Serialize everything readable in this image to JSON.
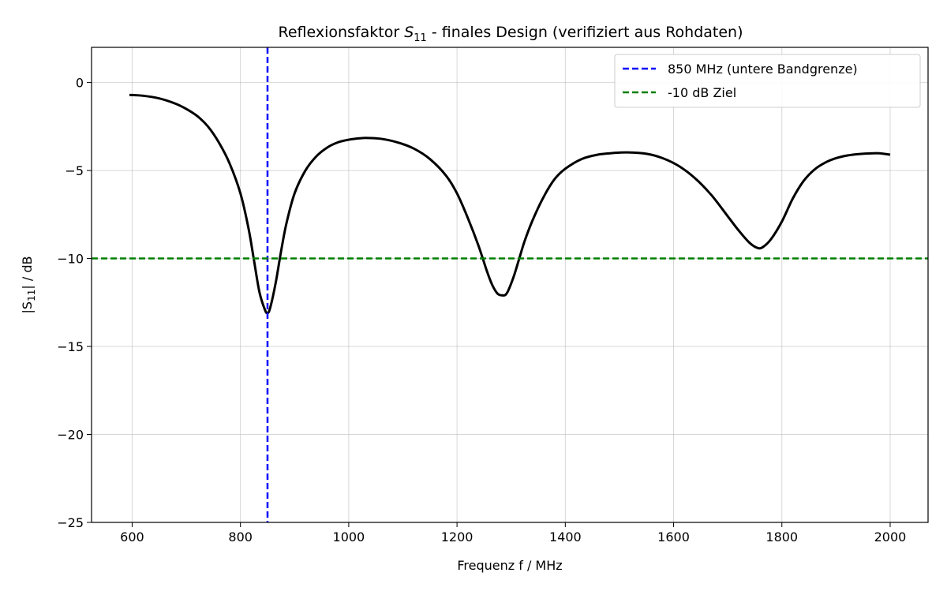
{
  "chart_data": {
    "type": "line",
    "title": {
      "prefix": "Reflexionsfaktor ",
      "symbol": "S",
      "subscript": "11",
      "suffix": " - finales Design (verifiziert aus Rohdaten)"
    },
    "xlabel": "Frequenz f / MHz",
    "ylabel": {
      "prefix": "|S",
      "subscript": "11",
      "suffix": "| / dB"
    },
    "xlim": [
      525,
      2070
    ],
    "ylim": [
      -25,
      2
    ],
    "xticks": [
      600,
      800,
      1000,
      1200,
      1400,
      1600,
      1800,
      2000
    ],
    "yticks": [
      0,
      -5,
      -10,
      -15,
      -20,
      -25
    ],
    "ytick_labels": [
      "0",
      "−5",
      "−10",
      "−15",
      "−20",
      "−25"
    ],
    "grid": true,
    "legend_position": "top-right",
    "series": [
      {
        "role": "s11-curve",
        "color": "#000000",
        "x": [
          595,
          620,
          650,
          680,
          700,
          720,
          740,
          760,
          780,
          800,
          815,
          825,
          835,
          845,
          850,
          855,
          865,
          875,
          885,
          900,
          920,
          940,
          960,
          980,
          1000,
          1020,
          1035,
          1060,
          1090,
          1120,
          1150,
          1180,
          1200,
          1220,
          1240,
          1255,
          1265,
          1275,
          1285,
          1290,
          1295,
          1305,
          1315,
          1325,
          1340,
          1360,
          1380,
          1400,
          1430,
          1460,
          1490,
          1515,
          1550,
          1580,
          1610,
          1640,
          1670,
          1700,
          1720,
          1740,
          1755,
          1765,
          1780,
          1800,
          1820,
          1840,
          1860,
          1880,
          1900,
          1920,
          1940,
          1960,
          1980,
          2000
        ],
        "y": [
          -0.7,
          -0.75,
          -0.9,
          -1.2,
          -1.5,
          -1.9,
          -2.5,
          -3.4,
          -4.6,
          -6.3,
          -8.3,
          -10.1,
          -11.9,
          -12.9,
          -13.1,
          -12.8,
          -11.4,
          -9.6,
          -8.0,
          -6.3,
          -5.0,
          -4.2,
          -3.7,
          -3.4,
          -3.25,
          -3.17,
          -3.15,
          -3.2,
          -3.4,
          -3.75,
          -4.35,
          -5.3,
          -6.3,
          -7.7,
          -9.3,
          -10.7,
          -11.5,
          -12.0,
          -12.1,
          -12.05,
          -11.8,
          -11.0,
          -10.0,
          -9.0,
          -7.8,
          -6.5,
          -5.5,
          -4.9,
          -4.35,
          -4.1,
          -4.0,
          -3.97,
          -4.05,
          -4.3,
          -4.75,
          -5.45,
          -6.4,
          -7.6,
          -8.4,
          -9.1,
          -9.4,
          -9.35,
          -8.9,
          -7.9,
          -6.6,
          -5.6,
          -4.95,
          -4.55,
          -4.3,
          -4.15,
          -4.07,
          -4.03,
          -4.02,
          -4.1
        ]
      }
    ],
    "reference_lines": [
      {
        "orientation": "vertical",
        "x": 850,
        "color": "#0000ff",
        "label": "850 MHz (untere Bandgrenze)"
      },
      {
        "orientation": "horizontal",
        "y": -10,
        "color": "#008000",
        "label": "-10 dB Ziel"
      }
    ]
  }
}
